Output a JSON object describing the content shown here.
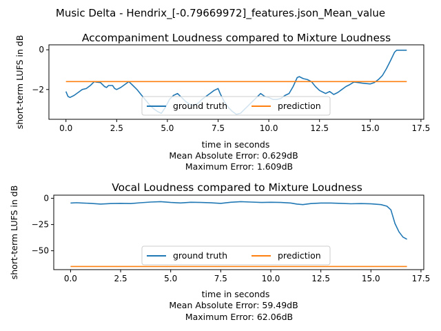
{
  "figure": {
    "suptitle": "Music Delta - Hendrix_[-0.79669972]_features.json_Mean_value"
  },
  "colors": {
    "ground_truth": "#1f77b4",
    "prediction": "#ff7f0e",
    "legend_border": "#cccccc"
  },
  "chart_data": [
    {
      "type": "line",
      "title": "Accompaniment Loudness compared to Mixture Loudness",
      "xlabel": "time in seconds",
      "ylabel": "short-term LUFS in dB",
      "xlim": [
        -0.84,
        17.64
      ],
      "ylim": [
        -3.5,
        0.25
      ],
      "xticks": [
        0.0,
        2.5,
        5.0,
        7.5,
        10.0,
        12.5,
        15.0,
        17.5
      ],
      "xtick_labels": [
        "0.0",
        "2.5",
        "5.0",
        "7.5",
        "10.0",
        "12.5",
        "15.0",
        "17.5"
      ],
      "yticks": [
        0,
        -2
      ],
      "ytick_labels": [
        "0",
        "−2"
      ],
      "grid": false,
      "legend_placement": "lower center",
      "legend": [
        "ground truth",
        "prediction"
      ],
      "annotations": [
        "Mean Absolute Error: 0.629dB",
        "Maximum Error: 1.609dB"
      ],
      "series": [
        {
          "name": "ground truth",
          "x": [
            0.0,
            0.1,
            0.2,
            0.4,
            0.6,
            0.8,
            1.0,
            1.2,
            1.4,
            1.5,
            1.7,
            1.9,
            2.0,
            2.1,
            2.3,
            2.4,
            2.5,
            2.7,
            2.9,
            3.1,
            3.3,
            3.5,
            3.7,
            3.9,
            4.1,
            4.3,
            4.5,
            4.7,
            4.9,
            5.1,
            5.3,
            5.5,
            5.7,
            5.9,
            6.1,
            6.3,
            6.5,
            6.7,
            6.9,
            7.1,
            7.3,
            7.5,
            7.6,
            7.8,
            8.0,
            8.2,
            8.4,
            8.6,
            8.8,
            9.0,
            9.2,
            9.4,
            9.6,
            9.8,
            10.0,
            10.2,
            10.4,
            10.6,
            10.8,
            11.0,
            11.2,
            11.4,
            11.5,
            11.7,
            11.9,
            12.1,
            12.3,
            12.5,
            12.7,
            12.8,
            13.0,
            13.2,
            13.4,
            13.6,
            13.8,
            14.0,
            14.2,
            14.4,
            14.6,
            14.8,
            15.0,
            15.2,
            15.4,
            15.6,
            15.8,
            16.0,
            16.2,
            16.3,
            16.5,
            16.7,
            16.8
          ],
          "values": [
            -2.1,
            -2.35,
            -2.4,
            -2.3,
            -2.15,
            -2.0,
            -1.95,
            -1.8,
            -1.6,
            -1.63,
            -1.65,
            -1.85,
            -1.9,
            -1.8,
            -1.8,
            -1.95,
            -2.0,
            -1.9,
            -1.75,
            -1.6,
            -1.8,
            -2.0,
            -2.25,
            -2.5,
            -2.75,
            -2.95,
            -3.1,
            -3.2,
            -2.9,
            -2.5,
            -2.3,
            -2.2,
            -2.4,
            -2.6,
            -2.75,
            -2.8,
            -2.7,
            -2.5,
            -2.35,
            -2.2,
            -2.05,
            -1.95,
            -2.2,
            -2.6,
            -2.9,
            -3.1,
            -3.25,
            -3.2,
            -3.0,
            -2.8,
            -2.6,
            -2.4,
            -2.2,
            -2.35,
            -2.4,
            -2.5,
            -2.5,
            -2.45,
            -2.3,
            -2.2,
            -1.85,
            -1.4,
            -1.35,
            -1.45,
            -1.5,
            -1.6,
            -1.85,
            -2.05,
            -2.15,
            -2.2,
            -2.1,
            -2.25,
            -2.15,
            -2.0,
            -1.85,
            -1.75,
            -1.62,
            -1.65,
            -1.68,
            -1.7,
            -1.72,
            -1.65,
            -1.5,
            -1.3,
            -0.95,
            -0.55,
            -0.12,
            -0.02,
            -0.02,
            -0.02,
            -0.02
          ]
        },
        {
          "name": "prediction",
          "x": [
            0.0,
            16.8
          ],
          "values": [
            -1.6,
            -1.6
          ]
        }
      ]
    },
    {
      "type": "line",
      "title": "Vocal Loudness compared to Mixture Loudness",
      "xlabel": "time in seconds",
      "ylabel": "short-term LUFS in dB",
      "xlim": [
        -0.84,
        17.64
      ],
      "ylim": [
        -68,
        3
      ],
      "xticks": [
        0.0,
        2.5,
        5.0,
        7.5,
        10.0,
        12.5,
        15.0,
        17.5
      ],
      "xtick_labels": [
        "0.0",
        "2.5",
        "5.0",
        "7.5",
        "10.0",
        "12.5",
        "15.0",
        "17.5"
      ],
      "yticks": [
        0,
        -25,
        -50
      ],
      "ytick_labels": [
        "0",
        "−25",
        "−50"
      ],
      "grid": false,
      "legend_placement": "lower center",
      "legend": [
        "ground truth",
        "prediction"
      ],
      "annotations": [
        "Mean Absolute Error: 59.49dB",
        "Maximum Error: 62.06dB"
      ],
      "series": [
        {
          "name": "ground truth",
          "x": [
            0.0,
            0.3,
            0.6,
            1.0,
            1.5,
            2.0,
            2.5,
            3.0,
            3.5,
            4.0,
            4.5,
            5.0,
            5.5,
            6.0,
            6.5,
            7.0,
            7.5,
            8.0,
            8.5,
            9.0,
            9.5,
            10.0,
            10.5,
            11.0,
            11.3,
            11.6,
            12.0,
            12.5,
            13.0,
            13.5,
            14.0,
            14.5,
            15.0,
            15.5,
            15.8,
            16.0,
            16.2,
            16.4,
            16.6,
            16.8
          ],
          "values": [
            -4.5,
            -4.2,
            -4.5,
            -4.8,
            -5.5,
            -5.0,
            -4.8,
            -5.0,
            -4.2,
            -3.6,
            -3.2,
            -4.0,
            -4.4,
            -3.8,
            -4.0,
            -4.3,
            -4.8,
            -3.8,
            -3.2,
            -3.6,
            -4.0,
            -3.8,
            -4.0,
            -4.5,
            -5.5,
            -6.0,
            -5.0,
            -4.5,
            -4.5,
            -4.8,
            -5.2,
            -5.0,
            -5.3,
            -6.0,
            -7.5,
            -11.0,
            -24.0,
            -32.0,
            -37.0,
            -39.0
          ]
        },
        {
          "name": "prediction",
          "x": [
            0.0,
            16.8
          ],
          "values": [
            -65.0,
            -65.0
          ]
        }
      ]
    }
  ]
}
